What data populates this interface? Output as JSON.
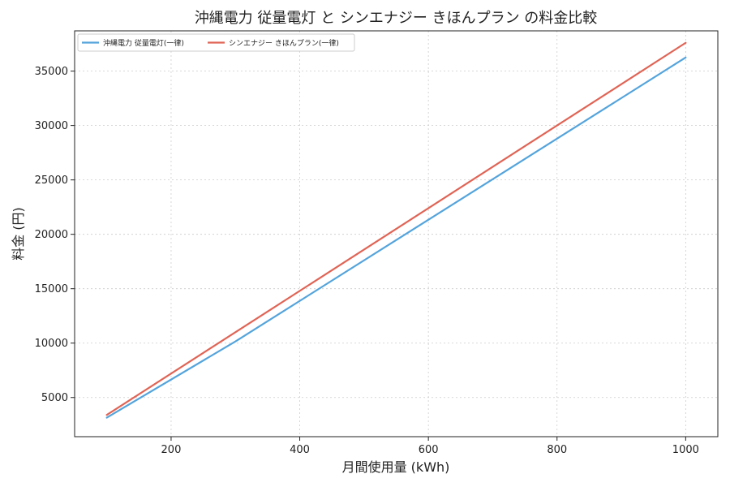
{
  "chart_data": {
    "type": "line",
    "title": "沖縄電力 従量電灯 と シンエナジー きほんプラン の料金比較",
    "xlabel": "月間使用量 (kWh)",
    "ylabel": "料金 (円)",
    "xlim": [
      50,
      1050
    ],
    "ylim": [
      1400,
      38700
    ],
    "xticks": [
      200,
      400,
      600,
      800,
      1000
    ],
    "yticks": [
      5000,
      10000,
      15000,
      20000,
      25000,
      30000,
      35000
    ],
    "grid": true,
    "legend": "top-left",
    "series": [
      {
        "name": "沖縄電力 従量電灯(一律)",
        "color": "#54a4dc",
        "x": [
          100,
          300,
          1000
        ],
        "y": [
          3150,
          10150,
          36250
        ]
      },
      {
        "name": "シンエナジー きほんプラン(一律)",
        "color": "#e06455",
        "x": [
          100,
          1000
        ],
        "y": [
          3400,
          37600
        ]
      }
    ]
  }
}
